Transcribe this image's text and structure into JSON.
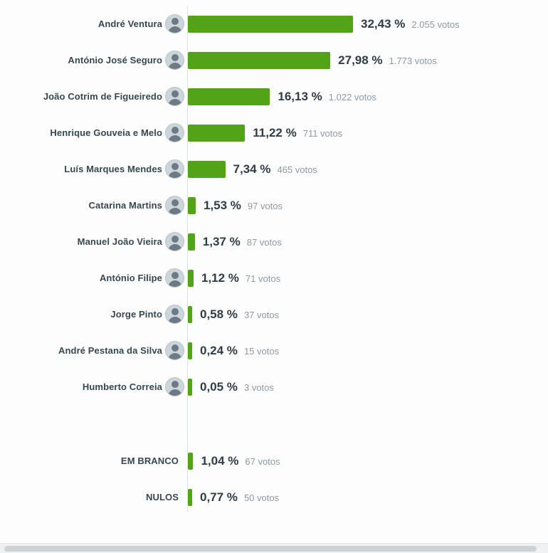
{
  "colors": {
    "bar": "#52a317",
    "name_text": "#37474f",
    "percent_text": "#2f3c46",
    "votes_text": "#8d99a3",
    "axis_line": "#e0e3e6"
  },
  "chart_data": {
    "type": "bar",
    "orientation": "horizontal",
    "title": "",
    "xlabel": "",
    "ylabel": "",
    "xlim": [
      0,
      32.43
    ],
    "grid": false,
    "legend": "none",
    "value_unit": "%",
    "candidates": [
      {
        "name": "André Ventura",
        "percent": 32.43,
        "percent_label": "32,43 %",
        "votes": 2055,
        "votes_label": "2.055 votos"
      },
      {
        "name": "António José Seguro",
        "percent": 27.98,
        "percent_label": "27,98 %",
        "votes": 1773,
        "votes_label": "1.773 votos"
      },
      {
        "name": "João Cotrim de Figueiredo",
        "percent": 16.13,
        "percent_label": "16,13 %",
        "votes": 1022,
        "votes_label": "1.022 votos"
      },
      {
        "name": "Henrique Gouveia e Melo",
        "percent": 11.22,
        "percent_label": "11,22 %",
        "votes": 711,
        "votes_label": "711 votos"
      },
      {
        "name": "Luís Marques Mendes",
        "percent": 7.34,
        "percent_label": "7,34 %",
        "votes": 465,
        "votes_label": "465 votos"
      },
      {
        "name": "Catarina Martins",
        "percent": 1.53,
        "percent_label": "1,53 %",
        "votes": 97,
        "votes_label": "97 votos"
      },
      {
        "name": "Manuel João Vieira",
        "percent": 1.37,
        "percent_label": "1,37 %",
        "votes": 87,
        "votes_label": "87 votos"
      },
      {
        "name": "António Filipe",
        "percent": 1.12,
        "percent_label": "1,12 %",
        "votes": 71,
        "votes_label": "71 votos"
      },
      {
        "name": "Jorge Pinto",
        "percent": 0.58,
        "percent_label": "0,58 %",
        "votes": 37,
        "votes_label": "37 votos"
      },
      {
        "name": "André Pestana da Silva",
        "percent": 0.24,
        "percent_label": "0,24 %",
        "votes": 15,
        "votes_label": "15 votos"
      },
      {
        "name": "Humberto Correia",
        "percent": 0.05,
        "percent_label": "0,05 %",
        "votes": 3,
        "votes_label": "3 votos"
      }
    ],
    "summary_rows": [
      {
        "name": "EM BRANCO",
        "percent": 1.04,
        "percent_label": "1,04 %",
        "votes": 67,
        "votes_label": "67 votos"
      },
      {
        "name": "NULOS",
        "percent": 0.77,
        "percent_label": "0,77 %",
        "votes": 50,
        "votes_label": "50 votos"
      }
    ]
  }
}
